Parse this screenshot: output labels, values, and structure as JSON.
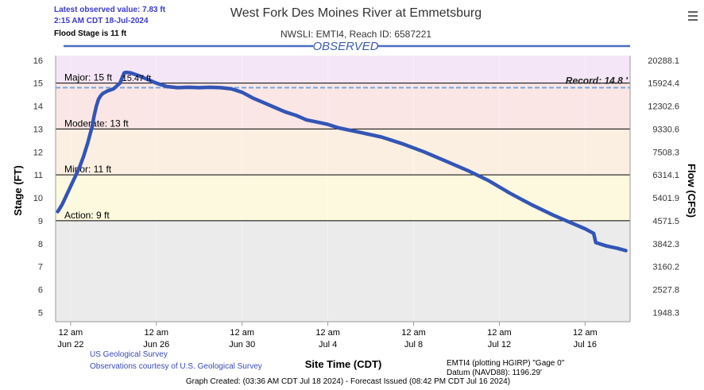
{
  "header": {
    "title": "West Fork Des Moines River at Emmetsburg",
    "subtitle": "NWSLI: EMTI4, Reach ID: 6587221",
    "observed_label": "OBSERVED",
    "latest_value": "Latest observed value: 7.83 ft",
    "latest_time": "2:15 AM CDT 18-Jul-2024",
    "flood_stage": "Flood Stage is 11 ft"
  },
  "menu": {
    "icon": "hamburger-menu-icon"
  },
  "chart_data": {
    "type": "line",
    "title": "West Fork Des Moines River at Emmetsburg",
    "xlabel": "Site Time (CDT)",
    "ylabel": "Stage (FT)",
    "ylabel_right": "Flow (CFS)",
    "x_unit": "days since Jun 21 12 am",
    "xlim": [
      -0.2,
      26.6
    ],
    "ylim": [
      4.6,
      16.2
    ],
    "x_ticks": [
      {
        "x": 0.5,
        "line1": "12 am",
        "line2": "Jun 22"
      },
      {
        "x": 4.5,
        "line1": "12 am",
        "line2": "Jun 26"
      },
      {
        "x": 8.5,
        "line1": "12 am",
        "line2": "Jun 30"
      },
      {
        "x": 12.5,
        "line1": "12 am",
        "line2": "Jul 4"
      },
      {
        "x": 16.5,
        "line1": "12 am",
        "line2": "Jul 8"
      },
      {
        "x": 20.5,
        "line1": "12 am",
        "line2": "Jul 12"
      },
      {
        "x": 24.5,
        "line1": "12 am",
        "line2": "Jul 16"
      }
    ],
    "y_ticks": [
      5,
      6,
      7,
      8,
      9,
      10,
      11,
      12,
      13,
      14,
      15,
      16
    ],
    "flow_ticks": [
      {
        "y": 5,
        "label": "1948.3"
      },
      {
        "y": 6,
        "label": "2527.8"
      },
      {
        "y": 7,
        "label": "3160.2"
      },
      {
        "y": 8,
        "label": "3842.3"
      },
      {
        "y": 9,
        "label": "4571.5"
      },
      {
        "y": 10,
        "label": "5401.9"
      },
      {
        "y": 11,
        "label": "6314.1"
      },
      {
        "y": 12,
        "label": "7508.3"
      },
      {
        "y": 13,
        "label": "9330.6"
      },
      {
        "y": 14,
        "label": "12302.6"
      },
      {
        "y": 15,
        "label": "15924.4"
      },
      {
        "y": 16,
        "label": "20288.1"
      }
    ],
    "flood_categories": [
      {
        "name": "Major: 15 ft",
        "stage": 15,
        "color": "#f5e6f7"
      },
      {
        "name": "Moderate: 13 ft",
        "stage": 13,
        "color": "#fbe6e6"
      },
      {
        "name": "Minor: 11 ft",
        "stage": 11,
        "color": "#fbefe2"
      },
      {
        "name": "Action: 9 ft",
        "stage": 9,
        "color": "#fcf9df"
      }
    ],
    "below_action_color": "#ebebeb",
    "top_band_limit": 16.2,
    "record": {
      "label": "Record: 14.8 '",
      "stage": 14.8
    },
    "peak_label": {
      "text": "15.47 ft",
      "x": 2.9,
      "y": 15.1
    },
    "series": [
      {
        "color": "#3355b5",
        "x": [
          -0.1,
          0.1,
          0.3,
          0.5,
          0.7,
          0.9,
          1.1,
          1.3,
          1.5,
          1.6,
          1.7,
          1.8,
          1.9,
          2.0,
          2.2,
          2.5,
          2.8,
          3.0,
          3.1,
          3.3,
          3.6,
          4.0,
          4.5,
          5.0,
          5.5,
          6.0,
          6.5,
          7.0,
          7.5,
          8.0,
          8.5,
          9.0,
          9.5,
          10.0,
          10.5,
          11.0,
          11.5,
          12.0,
          12.5,
          13.0,
          14.0,
          15.0,
          16.0,
          17.0,
          18.0,
          19.0,
          20.0,
          21.0,
          22.0,
          23.0,
          24.0,
          24.5,
          24.9,
          25.0,
          25.5,
          26.0,
          26.4
        ],
        "values": [
          9.4,
          9.7,
          10.1,
          10.5,
          10.9,
          11.3,
          11.8,
          12.4,
          13.1,
          13.6,
          14.0,
          14.3,
          14.45,
          14.55,
          14.65,
          14.75,
          15.0,
          15.45,
          15.47,
          15.45,
          15.35,
          15.2,
          15.0,
          14.85,
          14.8,
          14.82,
          14.8,
          14.82,
          14.8,
          14.75,
          14.6,
          14.35,
          14.15,
          13.95,
          13.75,
          13.6,
          13.4,
          13.3,
          13.2,
          13.05,
          12.85,
          12.65,
          12.35,
          12.0,
          11.6,
          11.2,
          10.75,
          10.2,
          9.7,
          9.25,
          8.85,
          8.65,
          8.45,
          8.05,
          7.9,
          7.8,
          7.7
        ]
      }
    ]
  },
  "footer": {
    "credit1": "US Geological Survey",
    "credit2": "Observations courtesy of U.S. Geological Survey",
    "datum1": "EMTI4 (plotting HGIRP) \"Gage 0\"",
    "datum2": "Datum (NAVD88): 1196.29'",
    "created": "Graph Created: (03:36 AM CDT Jul 18 2024) - Forecast Issued (08:42 PM CDT Jul 16 2024)"
  }
}
